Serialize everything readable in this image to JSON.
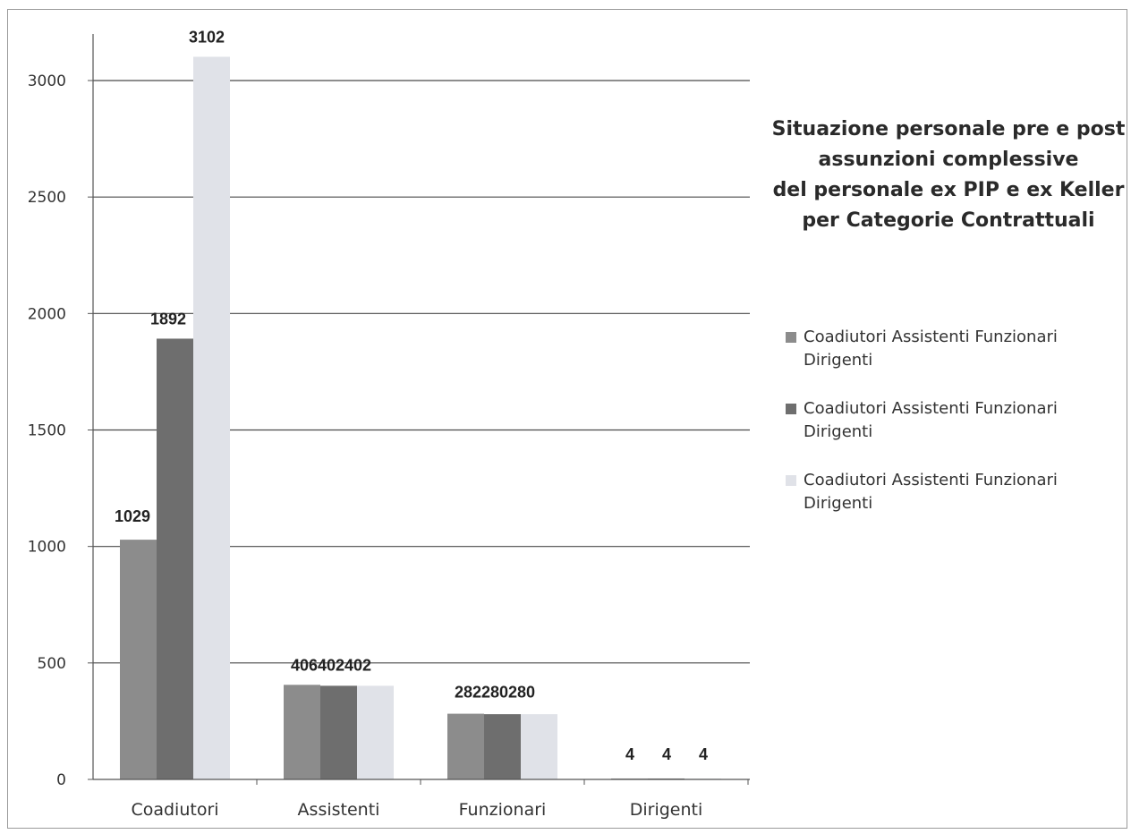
{
  "chart_data": {
    "type": "bar",
    "title_lines": [
      "Situazione personale pre e post",
      "assunzioni complessive",
      "del personale ex PIP e ex Keller",
      "per Categorie Contrattuali"
    ],
    "categories": [
      "Coadiutori",
      "Assistenti",
      "Funzionari",
      "Dirigenti"
    ],
    "series": [
      {
        "name": "Coadiutori Assistenti Funzionari Dirigenti",
        "values": [
          1029,
          406,
          282,
          4
        ],
        "color": "#8c8c8c"
      },
      {
        "name": "Coadiutori Assistenti Funzionari Dirigenti",
        "values": [
          1892,
          402,
          280,
          4
        ],
        "color": "#6e6e6e"
      },
      {
        "name": "Coadiutori Assistenti Funzionari Dirigenti",
        "values": [
          3102,
          402,
          280,
          4
        ],
        "color": "#e0e2e8"
      }
    ],
    "data_labels": [
      "1029",
      "1892",
      "3102",
      "406402402",
      "282280280",
      "4",
      "4",
      "4"
    ],
    "ylim": [
      0,
      3000
    ],
    "yticks": [
      0,
      500,
      1000,
      1500,
      2000,
      2500,
      3000
    ],
    "grid": true,
    "legend_position": "right"
  }
}
